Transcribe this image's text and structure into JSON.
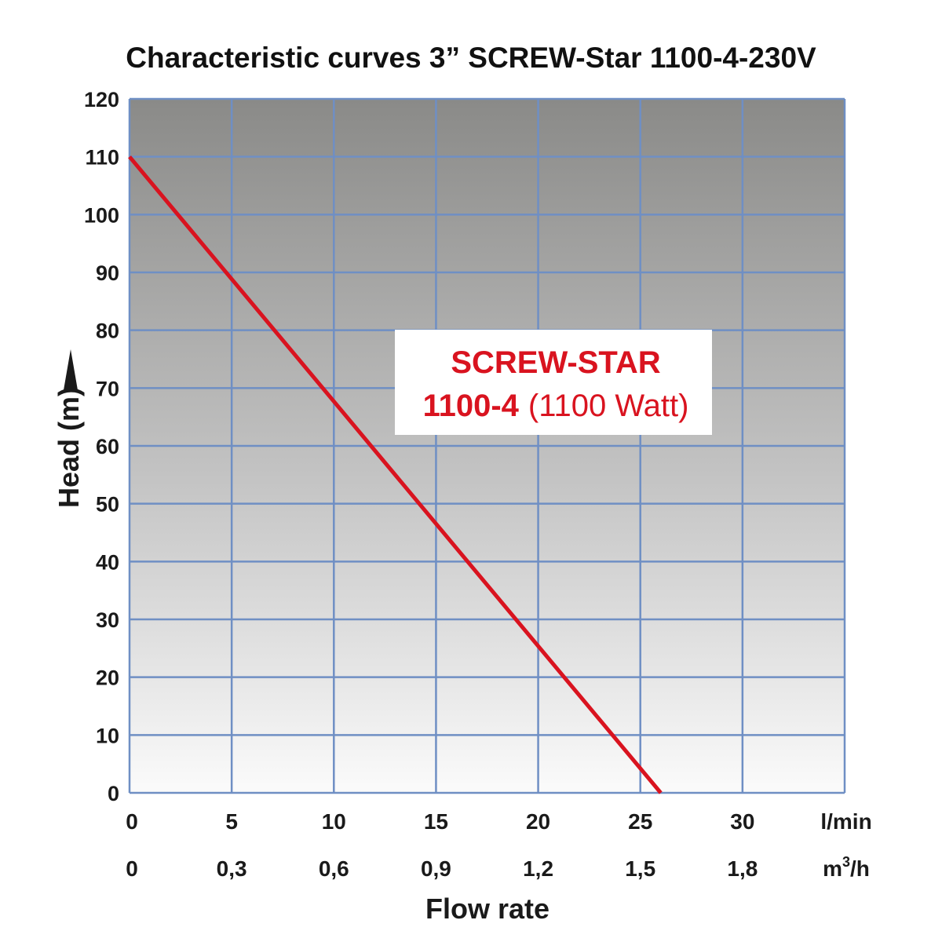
{
  "chart_data": {
    "type": "line",
    "title": "Characteristic curves 3” SCREW-Star 1100-4-230V",
    "ylabel": "Head (m)",
    "xlabel": "Flow rate",
    "ylim": [
      0,
      120
    ],
    "xlim": [
      0,
      35
    ],
    "y_ticks": [
      0,
      10,
      20,
      30,
      40,
      50,
      60,
      70,
      80,
      90,
      100,
      110,
      120
    ],
    "x_ticks": [
      0,
      5,
      10,
      15,
      20,
      25,
      30
    ],
    "x_tick_labels_lmin": [
      "0",
      "5",
      "10",
      "15",
      "20",
      "25",
      "30"
    ],
    "x_tick_labels_m3h": [
      "0",
      "0,3",
      "0,6",
      "0,9",
      "1,2",
      "1,5",
      "1,8"
    ],
    "x_unit_primary": "l/min",
    "x_unit_secondary_base": "m",
    "x_unit_secondary_sup": "3",
    "x_unit_secondary_tail": "/h",
    "grid": true,
    "series": [
      {
        "x": [
          0,
          26
        ],
        "y": [
          110,
          0
        ],
        "color": "#d9131f"
      }
    ],
    "annotation": {
      "line1": "SCREW-STAR",
      "line2_bold": "1100-4",
      "line2_normal": "(1100 Watt)",
      "color": "#d9131f"
    }
  }
}
